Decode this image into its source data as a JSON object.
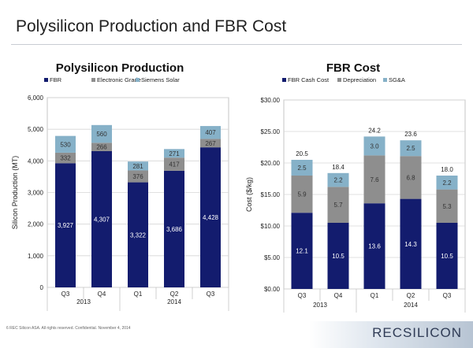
{
  "slide": {
    "title": "Polysilicon Production and FBR Cost",
    "footer": "REC Silicon ASA. All rights reserved. Confidential. November 4, 2014",
    "page_number": "6",
    "logo": "RECSILICON"
  },
  "colors": {
    "fbr": "#131c6e",
    "electronic_grade": "#8e8e8e",
    "siemens_solar": "#86b1c8",
    "fbr_cash_cost": "#131c6e",
    "depreciation": "#8e8e8e",
    "sga": "#86b1c8"
  },
  "chart_data": [
    {
      "type": "bar",
      "stacked": true,
      "title": "Polysilicon Production",
      "xlabel": "",
      "ylabel": "Silicon Production (MT)",
      "ylim": [
        0,
        6000
      ],
      "yticks": [
        0,
        1000,
        2000,
        3000,
        4000,
        5000,
        6000
      ],
      "ytick_labels": [
        "0",
        "1,000",
        "2,000",
        "3,000",
        "4,000",
        "5,000",
        "6,000"
      ],
      "categories": [
        "Q3",
        "Q4",
        "Q1",
        "Q2",
        "Q3"
      ],
      "groups": [
        {
          "label": "2013",
          "span": [
            0,
            1
          ]
        },
        {
          "label": "2014",
          "span": [
            2,
            4
          ]
        }
      ],
      "legend_position": "top-left",
      "series": [
        {
          "name": "FBR",
          "values": [
            3927,
            4307,
            3322,
            3686,
            4428
          ],
          "labels": [
            "3,927",
            "4,307",
            "3,322",
            "3,686",
            "4,428"
          ]
        },
        {
          "name": "Electronic Grade",
          "values": [
            332,
            266,
            376,
            417,
            267
          ],
          "labels": [
            "332",
            "266",
            "376",
            "417",
            "267"
          ]
        },
        {
          "name": "Siemens Solar",
          "values": [
            530,
            560,
            281,
            271,
            407
          ],
          "labels": [
            "530",
            "560",
            "281",
            "271",
            "407"
          ]
        }
      ]
    },
    {
      "type": "bar",
      "stacked": true,
      "title": "FBR Cost",
      "xlabel": "",
      "ylabel": "Cost ($/kg)",
      "ylim": [
        0,
        30
      ],
      "yticks": [
        0,
        5,
        10,
        15,
        20,
        25,
        30
      ],
      "ytick_labels": [
        "$0.00",
        "$5.00",
        "$10.00",
        "$15.00",
        "$20.00",
        "$25.00",
        "$30.00"
      ],
      "categories": [
        "Q3",
        "Q4",
        "Q1",
        "Q2",
        "Q3"
      ],
      "groups": [
        {
          "label": "2013",
          "span": [
            0,
            1
          ]
        },
        {
          "label": "2014",
          "span": [
            2,
            4
          ]
        }
      ],
      "legend_position": "top-left",
      "totals": [
        20.5,
        18.4,
        24.2,
        23.6,
        18.0
      ],
      "total_labels": [
        "20.5",
        "18.4",
        "24.2",
        "23.6",
        "18.0"
      ],
      "series": [
        {
          "name": "FBR Cash Cost",
          "values": [
            12.1,
            10.5,
            13.6,
            14.3,
            10.5
          ],
          "labels": [
            "12.1",
            "10.5",
            "13.6",
            "14.3",
            "10.5"
          ]
        },
        {
          "name": "Depreciation",
          "values": [
            5.9,
            5.7,
            7.6,
            6.8,
            5.3
          ],
          "labels": [
            "5.9",
            "5.7",
            "7.6",
            "6.8",
            "5.3"
          ]
        },
        {
          "name": "SG&A",
          "values": [
            2.5,
            2.2,
            3.0,
            2.5,
            2.2
          ],
          "labels": [
            "2.5",
            "2.2",
            "3.0",
            "2.5",
            "2.2"
          ]
        }
      ]
    }
  ]
}
